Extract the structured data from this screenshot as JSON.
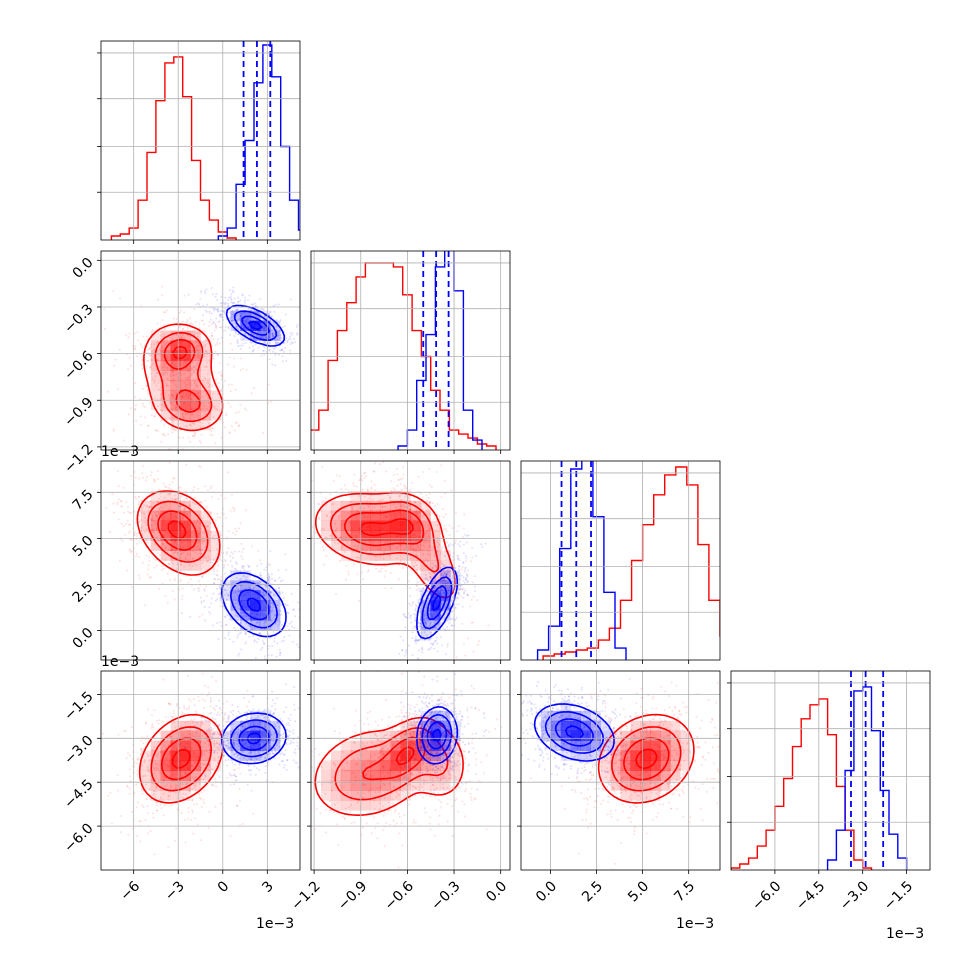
{
  "chart_data": {
    "type": "corner",
    "parameters": [
      "p1",
      "p2",
      "p3",
      "p4"
    ],
    "colors": {
      "red": "#ff0000",
      "blue": "#0000ff",
      "grid": "#b0b0b0"
    },
    "grid": true,
    "axes": {
      "p1": {
        "range": [
          -0.0082,
          0.0052
        ],
        "ticks": [
          -0.006,
          -0.003,
          0.0,
          0.003
        ],
        "tick_labels": [
          "−6",
          "−3",
          "0",
          "3"
        ],
        "offset_text": "1e−3"
      },
      "p2": {
        "range": [
          -0.00122,
          6e-05
        ],
        "ticks": [
          -0.0012,
          -0.0009,
          -0.0006,
          -0.0003,
          0.0
        ],
        "tick_labels": [
          "−1.2",
          "−0.9",
          "−0.6",
          "−0.3",
          "0.0"
        ],
        "offset_text": "1e−3",
        "y_tick_labels": [
          "0.0",
          "−0.3",
          "−0.6",
          "−0.9",
          "−1.2"
        ]
      },
      "p3": {
        "range": [
          -0.0016,
          0.0092
        ],
        "ticks": [
          0.0,
          0.0025,
          0.005,
          0.0075
        ],
        "tick_labels": [
          "0.0",
          "2.5",
          "5.0",
          "7.5"
        ],
        "offset_text": "1e−3"
      },
      "p4": {
        "range": [
          -0.0075,
          -0.0007
        ],
        "ticks": [
          -0.006,
          -0.0045,
          -0.003,
          -0.0015
        ],
        "tick_labels": [
          "−6.0",
          "−4.5",
          "−3.0",
          "−1.5"
        ],
        "offset_text": "1e−3"
      }
    },
    "diagonal": [
      {
        "param": "p1",
        "red": {
          "edges_start": -0.0075,
          "bin_width": 0.0006,
          "counts": [
            0.02,
            0.03,
            0.06,
            0.2,
            0.44,
            0.7,
            0.89,
            0.92,
            0.72,
            0.4,
            0.2,
            0.1,
            0.04,
            0.01
          ]
        },
        "blue": {
          "edges_start": -0.0003,
          "bin_width": 0.0006,
          "counts": [
            0.02,
            0.06,
            0.28,
            0.5,
            0.79,
            0.98,
            0.82,
            0.47,
            0.2,
            0.05,
            0.01
          ]
        },
        "quantiles": [
          0.0014,
          0.0023,
          0.0032
        ],
        "ymax": 1.0
      },
      {
        "param": "p2",
        "red": {
          "edges_start": -0.00123,
          "bin_width": 6e-05,
          "counts": [
            0.1,
            0.2,
            0.45,
            0.6,
            0.74,
            0.87,
            0.94,
            0.94,
            0.94,
            0.92,
            0.78,
            0.6,
            0.47,
            0.3,
            0.2,
            0.1,
            0.08,
            0.06,
            0.03,
            0.02
          ]
        },
        "blue": {
          "edges_start": -0.00066,
          "bin_width": 6e-05,
          "counts": [
            0.02,
            0.1,
            0.35,
            0.58,
            0.92,
            1.06,
            0.8,
            0.2,
            0.05
          ]
        },
        "quantiles": [
          -0.000498,
          -0.000415,
          -0.000335
        ],
        "ymax": 1.0
      },
      {
        "param": "p3",
        "red": {
          "edges_start": -0.0004,
          "bin_width": 0.0006,
          "counts": [
            0.02,
            0.03,
            0.04,
            0.05,
            0.06,
            0.1,
            0.16,
            0.3,
            0.5,
            0.68,
            0.83,
            0.93,
            0.97,
            0.88,
            0.58,
            0.3,
            0.12,
            0.04,
            0.02
          ]
        },
        "blue": {
          "edges_start": -0.0007,
          "bin_width": 0.0006,
          "counts": [
            0.05,
            0.17,
            0.56,
            0.96,
            1.02,
            0.72,
            0.34,
            0.06
          ]
        },
        "quantiles": [
          0.0006,
          0.0014,
          0.0022
        ],
        "ymax": 1.0
      },
      {
        "param": "p4",
        "red": {
          "edges_start": -0.0075,
          "bin_width": 0.0003,
          "counts": [
            0.01,
            0.03,
            0.06,
            0.12,
            0.2,
            0.32,
            0.46,
            0.62,
            0.76,
            0.83,
            0.86,
            0.68,
            0.42,
            0.2,
            0.05,
            0.01
          ]
        },
        "blue": {
          "edges_start": -0.0042,
          "bin_width": 0.0003,
          "counts": [
            0.05,
            0.2,
            0.5,
            0.9,
            0.92,
            0.7,
            0.4,
            0.18,
            0.06
          ]
        },
        "quantiles": [
          -0.0034,
          -0.0029,
          -0.0023
        ],
        "ymax": 1.0
      }
    ],
    "pairs": [
      {
        "x": "p1",
        "y": "p2",
        "red": [
          {
            "mean": [
              -0.0028,
              -0.00058
            ],
            "sd": [
              0.0009,
              7e-05
            ],
            "rho": 0.1,
            "w": 1.0
          },
          {
            "mean": [
              -0.0022,
              -0.00093
            ],
            "sd": [
              0.0011,
              8e-05
            ],
            "rho": -0.1,
            "w": 0.8
          },
          {
            "mean": [
              -0.003,
              -0.00072
            ],
            "sd": [
              0.0013,
              0.00016
            ],
            "rho": -0.2,
            "w": 0.6
          }
        ],
        "blue": [
          {
            "mean": [
              0.0022,
              -0.00042
            ],
            "sd": [
              0.0009,
              6e-05
            ],
            "rho": -0.6,
            "w": 1.0
          }
        ]
      },
      {
        "x": "p1",
        "y": "p3",
        "red": [
          {
            "mean": [
              -0.0028,
              0.0052
            ],
            "sd": [
              0.0013,
              0.0011
            ],
            "rho": -0.3,
            "w": 1.0
          },
          {
            "mean": [
              -0.0035,
              0.0058
            ],
            "sd": [
              0.0011,
              0.0008
            ],
            "rho": -0.2,
            "w": 0.5
          }
        ],
        "blue": [
          {
            "mean": [
              0.0021,
              0.0014
            ],
            "sd": [
              0.001,
              0.0008
            ],
            "rho": -0.4,
            "w": 1.0
          }
        ]
      },
      {
        "x": "p1",
        "y": "p4",
        "red": [
          {
            "mean": [
              -0.0028,
              -0.0037
            ],
            "sd": [
              0.0013,
              0.0007
            ],
            "rho": 0.3,
            "w": 1.0
          }
        ],
        "blue": [
          {
            "mean": [
              0.0021,
              -0.003
            ],
            "sd": [
              0.001,
              0.0004
            ],
            "rho": 0.1,
            "w": 1.0
          }
        ]
      },
      {
        "x": "p2",
        "y": "p3",
        "red": [
          {
            "mean": [
              -0.00085,
              0.0055
            ],
            "sd": [
              0.00016,
              0.0009
            ],
            "rho": -0.2,
            "w": 1.0
          },
          {
            "mean": [
              -0.0006,
              0.0058
            ],
            "sd": [
              0.0001,
              0.0008
            ],
            "rho": -0.2,
            "w": 0.7
          },
          {
            "mean": [
              -0.00045,
              0.0038
            ],
            "sd": [
              0.0001,
              0.0013
            ],
            "rho": -0.6,
            "w": 0.35
          }
        ],
        "blue": [
          {
            "mean": [
              -0.00041,
              0.0015
            ],
            "sd": [
              6e-05,
              0.0009
            ],
            "rho": 0.6,
            "w": 1.0
          }
        ]
      },
      {
        "x": "p2",
        "y": "p4",
        "red": [
          {
            "mean": [
              -0.00085,
              -0.0042
            ],
            "sd": [
              0.00018,
              0.00075
            ],
            "rho": 0.2,
            "w": 0.8
          },
          {
            "mean": [
              -0.0006,
              -0.0035
            ],
            "sd": [
              9e-05,
              0.00055
            ],
            "rho": 0.4,
            "w": 1.0
          },
          {
            "mean": [
              -0.0004,
              -0.0038
            ],
            "sd": [
              0.0001,
              0.0007
            ],
            "rho": -0.1,
            "w": 0.45
          }
        ],
        "blue": [
          {
            "mean": [
              -0.00041,
              -0.0029
            ],
            "sd": [
              6e-05,
              0.00045
            ],
            "rho": 0.1,
            "w": 1.0
          }
        ]
      },
      {
        "x": "p3",
        "y": "p4",
        "red": [
          {
            "mean": [
              0.0052,
              -0.0037
            ],
            "sd": [
              0.0012,
              0.0007
            ],
            "rho": 0.2,
            "w": 1.0
          }
        ],
        "blue": [
          {
            "mean": [
              0.0013,
              -0.0028
            ],
            "sd": [
              0.001,
              0.00045
            ],
            "rho": -0.3,
            "w": 1.0
          }
        ]
      }
    ],
    "contour_levels": [
      0.9,
      0.6,
      0.3,
      0.1
    ]
  }
}
